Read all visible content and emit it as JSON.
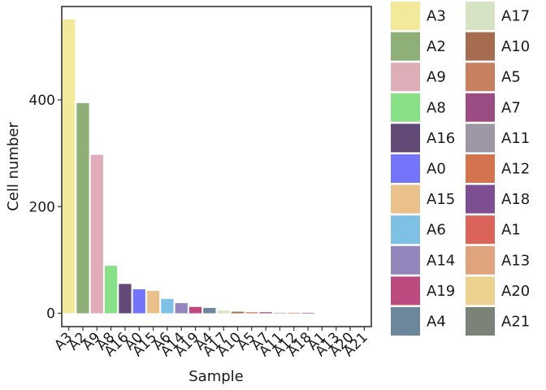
{
  "chart_data": {
    "type": "bar",
    "xlabel": "Sample",
    "ylabel": "Cell number",
    "ylim": [
      -25,
      575
    ],
    "yticks": [
      0,
      200,
      400
    ],
    "grid": false,
    "legend_placement": "right",
    "categories": [
      "A3",
      "A2",
      "A9",
      "A8",
      "A16",
      "A0",
      "A15",
      "A6",
      "A14",
      "A19",
      "A4",
      "A17",
      "A10",
      "A5",
      "A7",
      "A11",
      "A12",
      "A18",
      "A1",
      "A13",
      "A20",
      "A21"
    ],
    "values": [
      551,
      394,
      297,
      89,
      55,
      45,
      42,
      27,
      19,
      12,
      10,
      5,
      3,
      2,
      2,
      1,
      1,
      1,
      0,
      0,
      0,
      0
    ],
    "colors": [
      "#f3e99a",
      "#8faf78",
      "#deadb8",
      "#88e087",
      "#614a76",
      "#7474fb",
      "#eac08b",
      "#7fc1e4",
      "#9485bc",
      "#bd4a7e",
      "#6c879b",
      "#d6e3c4",
      "#a56c4f",
      "#c78060",
      "#9b4c82",
      "#9d96a4",
      "#d4744f",
      "#7d4f92",
      "#da6459",
      "#dfa47d",
      "#edd28f",
      "#7b8278"
    ]
  }
}
